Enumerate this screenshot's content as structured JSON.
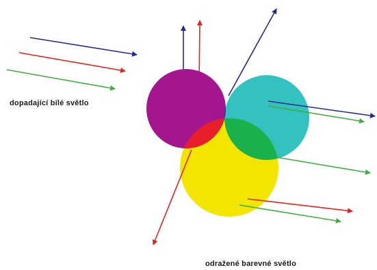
{
  "labels": {
    "incident": "dopadající bílé světlo",
    "reflected": "odražené barevné světlo"
  },
  "colors": {
    "magenta": "#a3168f",
    "cyan": "#33c2bf",
    "yellow": "#f2e600",
    "red": "#e81e2d",
    "green": "#1ab04a",
    "blue": "#2d2e93",
    "black": "#1c1c1c",
    "arrow_red": "#e3231e",
    "arrow_green": "#3fae3f",
    "arrow_blue": "#232a8c"
  }
}
